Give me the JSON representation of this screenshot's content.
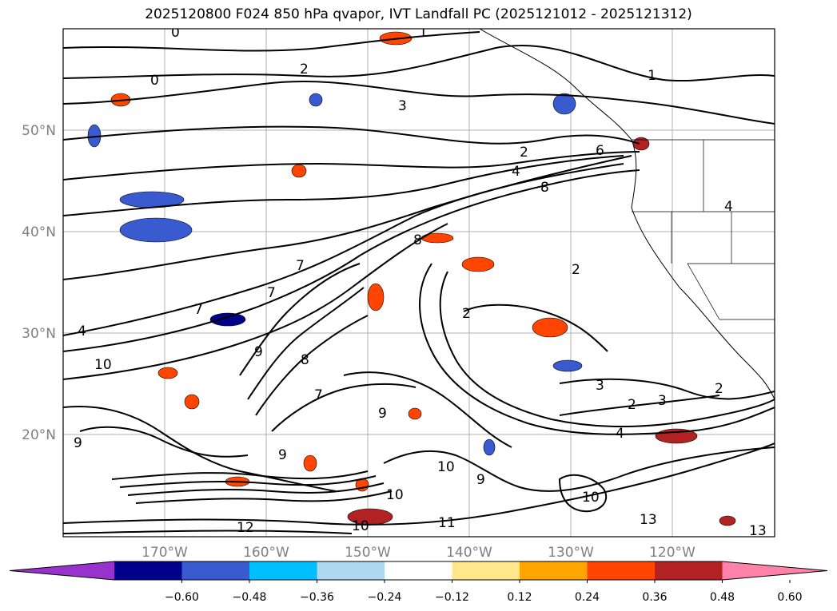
{
  "title": "2025120800 F024 850 hPa qvapor, IVT Landfall PC (2025121012 - 2025121312)",
  "map": {
    "lat_labels": [
      "50°N",
      "40°N",
      "30°N",
      "20°N"
    ],
    "lon_labels": [
      "170°W",
      "160°W",
      "150°W",
      "140°W",
      "130°W",
      "120°W"
    ],
    "contour_labels": [
      "0",
      "0",
      "1",
      "2",
      "3",
      "1",
      "2",
      "4",
      "6",
      "8",
      "2",
      "8",
      "7",
      "7",
      "4",
      "10",
      "7",
      "9",
      "8",
      "7",
      "9",
      "2",
      "3",
      "2",
      "3",
      "4",
      "10",
      "9",
      "9",
      "10",
      "10",
      "11",
      "12",
      "10",
      "9",
      "13",
      "13",
      "2",
      "4"
    ]
  },
  "colorbar": {
    "colors": [
      "#9932cc",
      "#00008b",
      "#3a5bd0",
      "#00bfff",
      "#add8f0",
      "#ffffff",
      "#ffe88c",
      "#ffa500",
      "#ff4500",
      "#b22222",
      "#ff82ab"
    ],
    "tick_labels": [
      "−0.60",
      "−0.48",
      "−0.36",
      "−0.24",
      "−0.12",
      "0.12",
      "0.24",
      "0.36",
      "0.48",
      "0.60"
    ]
  }
}
